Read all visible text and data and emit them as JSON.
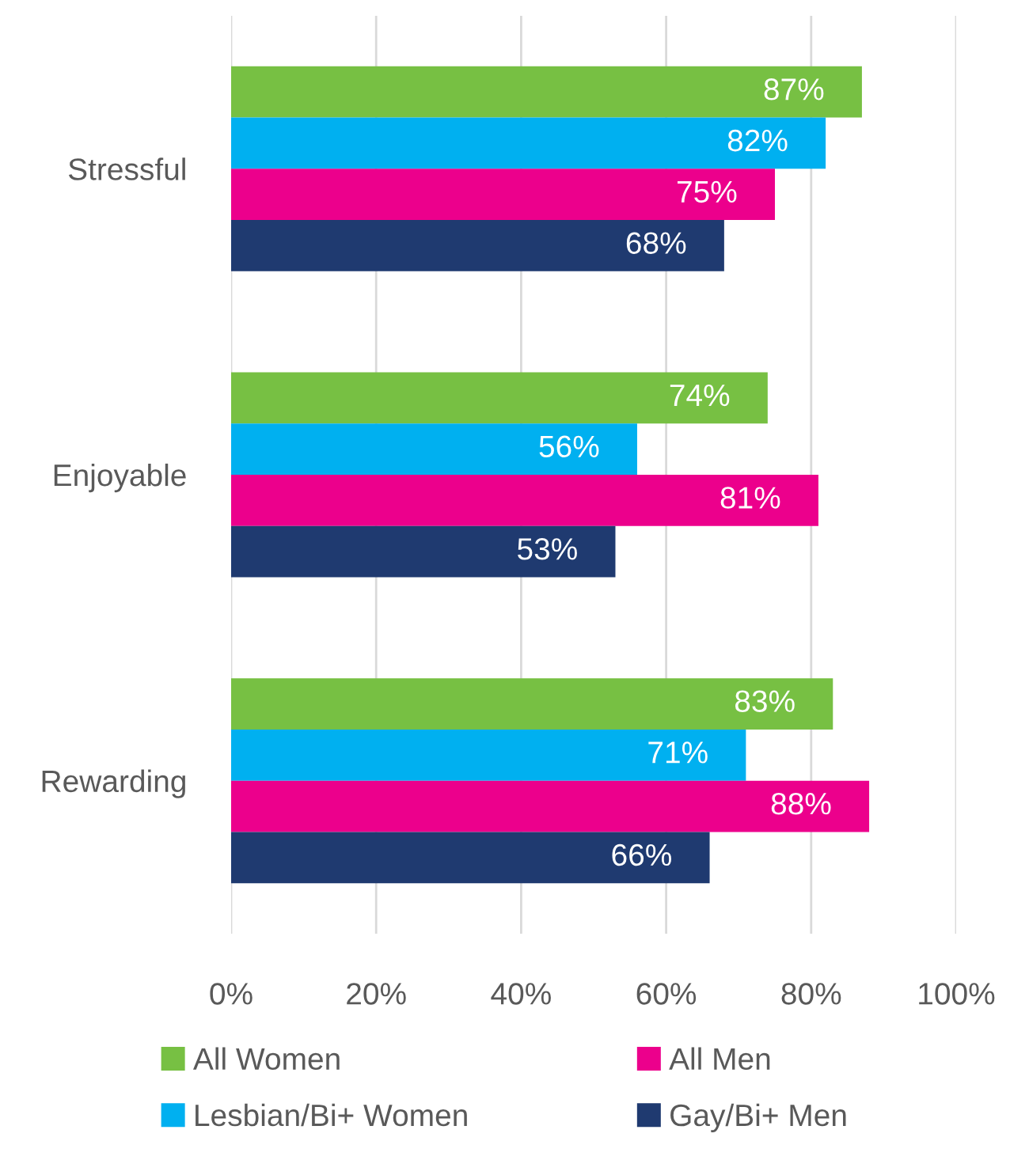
{
  "chart_data": {
    "type": "bar",
    "orientation": "horizontal",
    "categories": [
      "Stressful",
      "Enjoyable",
      "Rewarding"
    ],
    "series": [
      {
        "name": "All Women",
        "color": "#77c043",
        "values": [
          87,
          74,
          83
        ],
        "value_labels": [
          "87%",
          "74%",
          "83%"
        ]
      },
      {
        "name": "Lesbian/Bi+ Women",
        "color": "#00b0f0",
        "values": [
          82,
          56,
          71
        ],
        "value_labels": [
          "82%",
          "56%",
          "71%"
        ]
      },
      {
        "name": "All Men",
        "color": "#ec008c",
        "values": [
          75,
          81,
          88
        ],
        "value_labels": [
          "75%",
          "81%",
          "88%"
        ]
      },
      {
        "name": "Gay/Bi+ Men",
        "color": "#1f3a70",
        "values": [
          68,
          53,
          66
        ],
        "value_labels": [
          "68%",
          "53%",
          "66%"
        ]
      }
    ],
    "xlim": [
      0,
      100
    ],
    "xticks": [
      {
        "value": 0,
        "label": "0%"
      },
      {
        "value": 20,
        "label": "20%"
      },
      {
        "value": 40,
        "label": "40%"
      },
      {
        "value": 60,
        "label": "60%"
      },
      {
        "value": 80,
        "label": "80%"
      },
      {
        "value": 100,
        "label": "100%"
      }
    ],
    "grid": "x",
    "legend": "bottom"
  }
}
